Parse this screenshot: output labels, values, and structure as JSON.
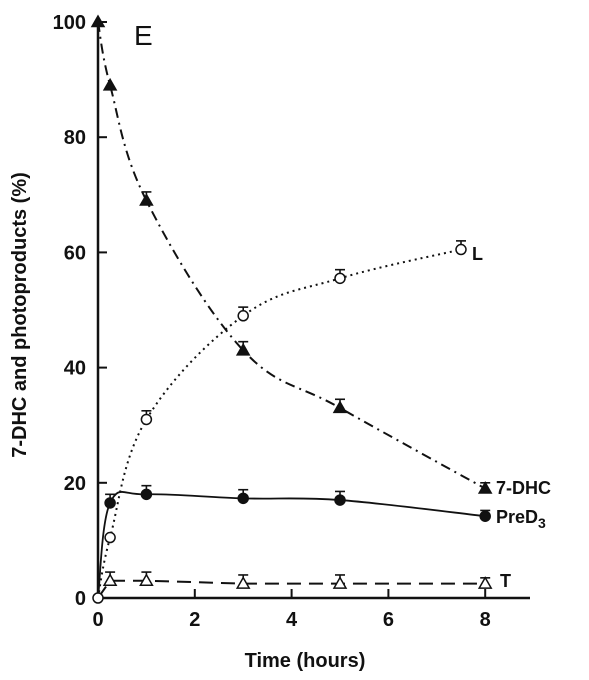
{
  "chart_data": {
    "type": "line",
    "panel_label": "E",
    "title": "",
    "xlabel": "Time (hours)",
    "ylabel": "7-DHC and photoproducts (%)",
    "xlim": [
      0,
      9
    ],
    "ylim": [
      0,
      100
    ],
    "xticks": [
      0,
      2,
      4,
      6,
      8
    ],
    "yticks": [
      0,
      20,
      40,
      60,
      80,
      100
    ],
    "grid": false,
    "series": [
      {
        "name": "7-DHC",
        "marker": "filled-triangle",
        "line_style": "dash-dot",
        "x": [
          0,
          0.25,
          1,
          3,
          5,
          8
        ],
        "y": [
          100,
          89,
          69,
          43,
          33,
          19
        ],
        "err": [
          0,
          0,
          1.5,
          1.5,
          1.5,
          1
        ]
      },
      {
        "name": "L",
        "marker": "open-circle",
        "line_style": "dotted",
        "x": [
          0,
          0.25,
          1,
          3,
          5,
          7.5
        ],
        "y": [
          0,
          10.5,
          31,
          49,
          55.5,
          60.5
        ],
        "err": [
          0,
          0,
          1.5,
          1.5,
          1.5,
          1.5
        ]
      },
      {
        "name": "PreD3",
        "label_main": "PreD",
        "label_sub": "3",
        "marker": "filled-circle",
        "line_style": "solid",
        "x": [
          0.25,
          1,
          3,
          5,
          8
        ],
        "y": [
          16.5,
          18,
          17.3,
          17,
          14.2
        ],
        "err": [
          1.5,
          1.5,
          1.5,
          1.5,
          1
        ]
      },
      {
        "name": "T",
        "marker": "open-triangle",
        "line_style": "dashed",
        "x": [
          0.25,
          1,
          3,
          5,
          8
        ],
        "y": [
          3,
          3,
          2.5,
          2.5,
          2.5
        ],
        "err": [
          1.5,
          1.5,
          1.5,
          1.5,
          1
        ]
      }
    ]
  }
}
